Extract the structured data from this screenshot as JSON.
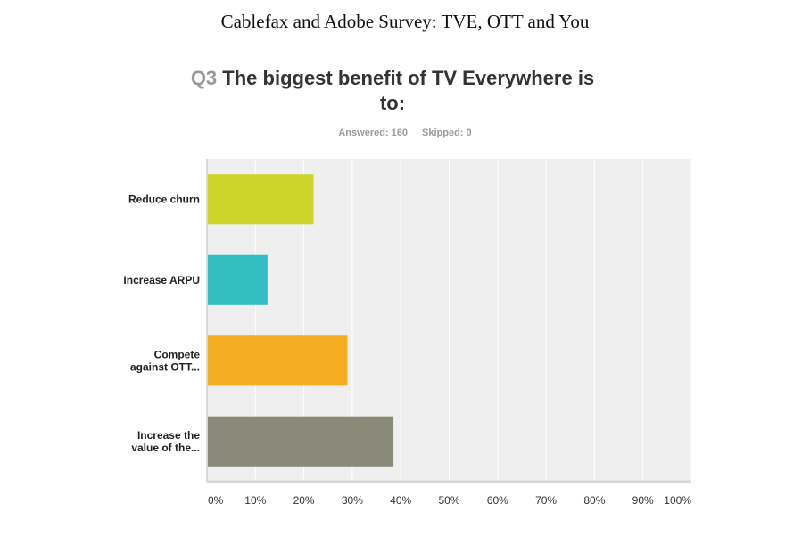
{
  "document": {
    "title": "Cablefax and Adobe Survey: TVE, OTT and You"
  },
  "question": {
    "number": "Q3",
    "text": "The biggest benefit of TV Everywhere is to:",
    "answered": "Answered: 160",
    "skipped": "Skipped: 0"
  },
  "chart_data": {
    "type": "bar",
    "orientation": "horizontal",
    "categories": [
      [
        "Reduce churn"
      ],
      [
        "Increase ARPU"
      ],
      [
        "Compete",
        "against OTT..."
      ],
      [
        "Increase the",
        "value of the..."
      ]
    ],
    "values": [
      22,
      12.5,
      29,
      38.5
    ],
    "colors": [
      "#cdd52a",
      "#33bfc1",
      "#f5ae22",
      "#8a8a7a"
    ],
    "xlim": [
      0,
      100
    ],
    "ticks": [
      "0%",
      "10%",
      "20%",
      "30%",
      "40%",
      "50%",
      "60%",
      "70%",
      "80%",
      "90%",
      "100%"
    ],
    "grid": true,
    "plot_background": "#efefef"
  }
}
